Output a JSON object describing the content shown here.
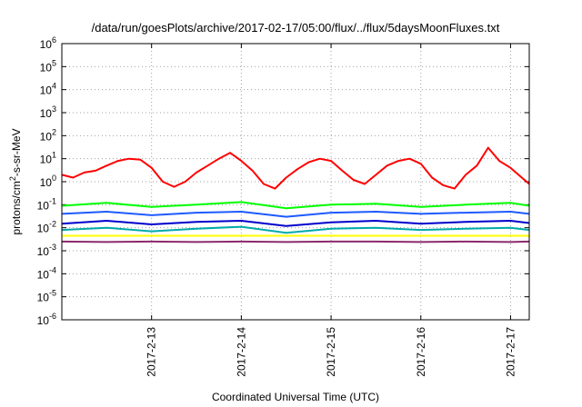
{
  "chart_data": {
    "type": "line",
    "title": "/data/run/goesPlots/archive/2017-02-17/05:00/flux/../flux/5daysMoonFluxes.txt",
    "xlabel": "Coordinated Universal Time (UTC)",
    "ylabel": "protons/cm2-s-sr-MeV",
    "ylabel_parts": {
      "pre": "protons/cm",
      "sup": "2",
      "post": "-s-sr-MeV"
    },
    "yscale": "log",
    "ylim": [
      1e-06,
      1000000.0
    ],
    "xlim": [
      "2017-02-12 00:00",
      "2017-02-17 05:00"
    ],
    "grid": true,
    "x_ticks": [
      "2017-2-13",
      "2017-2-14",
      "2017-2-15",
      "2017-2-16",
      "2017-2-17"
    ],
    "y_ticks": [
      {
        "base": "10",
        "exp": "-6"
      },
      {
        "base": "10",
        "exp": "-5"
      },
      {
        "base": "10",
        "exp": "-4"
      },
      {
        "base": "10",
        "exp": "-3"
      },
      {
        "base": "10",
        "exp": "-2"
      },
      {
        "base": "10",
        "exp": "-1"
      },
      {
        "base": "10",
        "exp": "0"
      },
      {
        "base": "10",
        "exp": "1"
      },
      {
        "base": "10",
        "exp": "2"
      },
      {
        "base": "10",
        "exp": "3"
      },
      {
        "base": "10",
        "exp": "4"
      },
      {
        "base": "10",
        "exp": "5"
      },
      {
        "base": "10",
        "exp": "6"
      }
    ],
    "series": [
      {
        "color": "#ff0000",
        "x": [
          "2017-02-12 00:00",
          "2017-02-12 03:00",
          "2017-02-12 06:00",
          "2017-02-12 09:00",
          "2017-02-12 12:00",
          "2017-02-12 15:00",
          "2017-02-12 18:00",
          "2017-02-12 21:00",
          "2017-02-13 00:00",
          "2017-02-13 03:00",
          "2017-02-13 06:00",
          "2017-02-13 09:00",
          "2017-02-13 12:00",
          "2017-02-13 15:00",
          "2017-02-13 18:00",
          "2017-02-13 21:00",
          "2017-02-14 00:00",
          "2017-02-14 03:00",
          "2017-02-14 06:00",
          "2017-02-14 09:00",
          "2017-02-14 12:00",
          "2017-02-14 15:00",
          "2017-02-14 18:00",
          "2017-02-14 21:00",
          "2017-02-15 00:00",
          "2017-02-15 03:00",
          "2017-02-15 06:00",
          "2017-02-15 09:00",
          "2017-02-15 12:00",
          "2017-02-15 15:00",
          "2017-02-15 18:00",
          "2017-02-15 21:00",
          "2017-02-16 00:00",
          "2017-02-16 03:00",
          "2017-02-16 06:00",
          "2017-02-16 09:00",
          "2017-02-16 12:00",
          "2017-02-16 15:00",
          "2017-02-16 18:00",
          "2017-02-16 21:00",
          "2017-02-17 00:00",
          "2017-02-17 03:00",
          "2017-02-17 05:00"
        ],
        "y": [
          2.0,
          1.5,
          2.5,
          3.0,
          5.0,
          8.0,
          10.0,
          9.0,
          4.0,
          1.0,
          0.6,
          1.0,
          2.5,
          5.0,
          10.0,
          18.0,
          8.0,
          3.0,
          0.8,
          0.5,
          1.5,
          3.5,
          7.0,
          10.0,
          8.0,
          3.0,
          1.2,
          0.8,
          2.0,
          5.0,
          8.0,
          10.0,
          6.0,
          1.5,
          0.7,
          0.5,
          2.0,
          5.0,
          30.0,
          8.0,
          4.0,
          1.5,
          0.8
        ]
      },
      {
        "color": "#00ff00",
        "x": [
          "2017-02-12 00:00",
          "2017-02-12 12:00",
          "2017-02-13 00:00",
          "2017-02-13 12:00",
          "2017-02-14 00:00",
          "2017-02-14 12:00",
          "2017-02-15 00:00",
          "2017-02-15 12:00",
          "2017-02-16 00:00",
          "2017-02-16 12:00",
          "2017-02-17 00:00",
          "2017-02-17 05:00"
        ],
        "y": [
          0.09,
          0.12,
          0.08,
          0.1,
          0.13,
          0.07,
          0.1,
          0.11,
          0.08,
          0.1,
          0.12,
          0.09
        ]
      },
      {
        "color": "#00aaaa",
        "x": [
          "2017-02-12 00:00",
          "2017-02-12 12:00",
          "2017-02-13 00:00",
          "2017-02-13 12:00",
          "2017-02-14 00:00",
          "2017-02-14 12:00",
          "2017-02-15 00:00",
          "2017-02-15 12:00",
          "2017-02-16 00:00",
          "2017-02-16 12:00",
          "2017-02-17 00:00",
          "2017-02-17 05:00"
        ],
        "y": [
          0.008,
          0.01,
          0.007,
          0.009,
          0.011,
          0.006,
          0.009,
          0.01,
          0.008,
          0.009,
          0.01,
          0.008
        ]
      },
      {
        "color": "#1e5aff",
        "x": [
          "2017-02-12 00:00",
          "2017-02-12 12:00",
          "2017-02-13 00:00",
          "2017-02-13 12:00",
          "2017-02-14 00:00",
          "2017-02-14 12:00",
          "2017-02-15 00:00",
          "2017-02-15 12:00",
          "2017-02-16 00:00",
          "2017-02-16 12:00",
          "2017-02-17 00:00",
          "2017-02-17 05:00"
        ],
        "y": [
          0.04,
          0.05,
          0.035,
          0.045,
          0.05,
          0.03,
          0.045,
          0.05,
          0.04,
          0.045,
          0.05,
          0.04
        ]
      },
      {
        "color": "#0000cc",
        "x": [
          "2017-02-12 00:00",
          "2017-02-12 12:00",
          "2017-02-13 00:00",
          "2017-02-13 12:00",
          "2017-02-14 00:00",
          "2017-02-14 12:00",
          "2017-02-15 00:00",
          "2017-02-15 12:00",
          "2017-02-16 00:00",
          "2017-02-16 12:00",
          "2017-02-17 00:00",
          "2017-02-17 05:00"
        ],
        "y": [
          0.015,
          0.02,
          0.014,
          0.018,
          0.02,
          0.012,
          0.017,
          0.02,
          0.015,
          0.018,
          0.02,
          0.016
        ]
      },
      {
        "color": "#ffff00",
        "x": [
          "2017-02-12 00:00",
          "2017-02-12 12:00",
          "2017-02-13 00:00",
          "2017-02-13 12:00",
          "2017-02-14 00:00",
          "2017-02-14 12:00",
          "2017-02-15 00:00",
          "2017-02-15 12:00",
          "2017-02-16 00:00",
          "2017-02-16 12:00",
          "2017-02-17 00:00",
          "2017-02-17 05:00"
        ],
        "y": [
          0.0045,
          0.0045,
          0.0045,
          0.0045,
          0.0045,
          0.0045,
          0.0045,
          0.0045,
          0.0045,
          0.0045,
          0.0045,
          0.0045
        ]
      },
      {
        "color": "#8b2a6b",
        "x": [
          "2017-02-12 00:00",
          "2017-02-12 12:00",
          "2017-02-13 00:00",
          "2017-02-13 12:00",
          "2017-02-14 00:00",
          "2017-02-14 12:00",
          "2017-02-15 00:00",
          "2017-02-15 12:00",
          "2017-02-16 00:00",
          "2017-02-16 12:00",
          "2017-02-17 00:00",
          "2017-02-17 05:00"
        ],
        "y": [
          0.0025,
          0.0024,
          0.0025,
          0.0024,
          0.0025,
          0.0024,
          0.0025,
          0.0025,
          0.0024,
          0.0025,
          0.0024,
          0.0025
        ]
      }
    ]
  }
}
